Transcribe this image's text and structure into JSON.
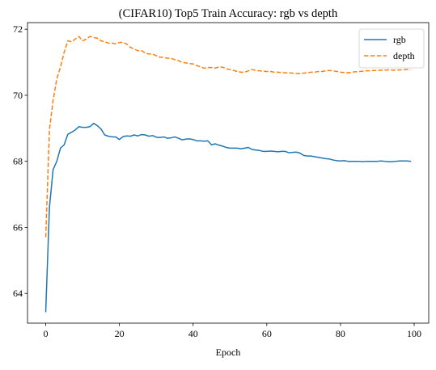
{
  "chart_data": {
    "type": "line",
    "title": "(CIFAR10) Top5 Train Accuracy: rgb vs depth",
    "xlabel": "Epoch",
    "ylabel": "",
    "xlim": [
      -4.95,
      103.95
    ],
    "ylim": [
      63.1,
      72.2
    ],
    "xticks": [
      0,
      20,
      40,
      60,
      80,
      100
    ],
    "yticks": [
      64,
      66,
      68,
      70,
      72
    ],
    "grid": false,
    "legend_position": "upper right",
    "series": [
      {
        "name": "rgb",
        "color": "#1f77b4",
        "linestyle": "solid",
        "x": [
          0,
          1,
          2,
          3,
          4,
          5,
          6,
          7,
          8,
          9,
          10,
          11,
          12,
          13,
          14,
          15,
          16,
          17,
          18,
          19,
          20,
          21,
          22,
          23,
          24,
          25,
          26,
          27,
          28,
          29,
          30,
          31,
          32,
          33,
          34,
          35,
          36,
          37,
          38,
          39,
          40,
          41,
          42,
          43,
          44,
          45,
          46,
          47,
          48,
          49,
          50,
          51,
          52,
          53,
          54,
          55,
          56,
          57,
          58,
          59,
          60,
          61,
          62,
          63,
          64,
          65,
          66,
          67,
          68,
          69,
          70,
          71,
          72,
          73,
          74,
          75,
          76,
          77,
          78,
          79,
          80,
          81,
          82,
          83,
          84,
          85,
          86,
          87,
          88,
          89,
          90,
          91,
          92,
          93,
          94,
          95,
          96,
          97,
          98,
          99
        ],
        "values": [
          63.45,
          66.6,
          67.75,
          68.0,
          68.4,
          68.5,
          68.82,
          68.88,
          68.95,
          69.05,
          69.03,
          69.03,
          69.05,
          69.15,
          69.08,
          68.98,
          68.8,
          68.76,
          68.74,
          68.74,
          68.66,
          68.75,
          68.77,
          68.76,
          68.8,
          68.77,
          68.81,
          68.8,
          68.76,
          68.78,
          68.73,
          68.72,
          68.74,
          68.7,
          68.71,
          68.74,
          68.7,
          68.65,
          68.67,
          68.68,
          68.66,
          68.62,
          68.62,
          68.61,
          68.62,
          68.5,
          68.53,
          68.49,
          68.46,
          68.42,
          68.4,
          68.4,
          68.4,
          68.38,
          68.4,
          68.42,
          68.36,
          68.34,
          68.33,
          68.3,
          68.3,
          68.31,
          68.3,
          68.29,
          68.3,
          68.3,
          68.26,
          68.27,
          68.28,
          68.25,
          68.18,
          68.16,
          68.16,
          68.14,
          68.12,
          68.1,
          68.08,
          68.07,
          68.04,
          68.02,
          68.01,
          68.02,
          68.0,
          68.0,
          68.0,
          68.0,
          67.99,
          68.0,
          68.0,
          68.0,
          68.0,
          68.01,
          68.0,
          67.99,
          67.99,
          68.0,
          68.01,
          68.01,
          68.01,
          68.0
        ]
      },
      {
        "name": "depth",
        "color": "#ff7f0e",
        "linestyle": "dashed",
        "x": [
          0,
          1,
          2,
          3,
          4,
          5,
          6,
          7,
          8,
          9,
          10,
          11,
          12,
          13,
          14,
          15,
          16,
          17,
          18,
          19,
          20,
          21,
          22,
          23,
          24,
          25,
          26,
          27,
          28,
          29,
          30,
          31,
          32,
          33,
          34,
          35,
          36,
          37,
          38,
          39,
          40,
          41,
          42,
          43,
          44,
          45,
          46,
          47,
          48,
          49,
          50,
          51,
          52,
          53,
          54,
          55,
          56,
          57,
          58,
          59,
          60,
          61,
          62,
          63,
          64,
          65,
          66,
          67,
          68,
          69,
          70,
          71,
          72,
          73,
          74,
          75,
          76,
          77,
          78,
          79,
          80,
          81,
          82,
          83,
          84,
          85,
          86,
          87,
          88,
          89,
          90,
          91,
          92,
          93,
          94,
          95,
          96,
          97,
          98,
          99
        ],
        "values": [
          65.7,
          68.95,
          69.85,
          70.5,
          70.85,
          71.3,
          71.65,
          71.62,
          71.7,
          71.78,
          71.65,
          71.7,
          71.78,
          71.75,
          71.73,
          71.65,
          71.62,
          71.58,
          71.58,
          71.56,
          71.6,
          71.6,
          71.55,
          71.45,
          71.4,
          71.35,
          71.35,
          71.28,
          71.25,
          71.25,
          71.2,
          71.15,
          71.15,
          71.12,
          71.12,
          71.08,
          71.05,
          71.0,
          70.98,
          70.96,
          70.95,
          70.9,
          70.86,
          70.82,
          70.84,
          70.84,
          70.82,
          70.86,
          70.85,
          70.8,
          70.78,
          70.75,
          70.72,
          70.7,
          70.7,
          70.74,
          70.78,
          70.75,
          70.74,
          70.73,
          70.72,
          70.72,
          70.7,
          70.7,
          70.69,
          70.68,
          70.68,
          70.67,
          70.66,
          70.66,
          70.67,
          70.68,
          70.7,
          70.7,
          70.72,
          70.72,
          70.74,
          70.75,
          70.74,
          70.72,
          70.7,
          70.69,
          70.68,
          70.7,
          70.71,
          70.72,
          70.73,
          70.74,
          70.74,
          70.75,
          70.75,
          70.76,
          70.76,
          70.77,
          70.76,
          70.76,
          70.77,
          70.77,
          70.78,
          70.78
        ]
      }
    ]
  }
}
